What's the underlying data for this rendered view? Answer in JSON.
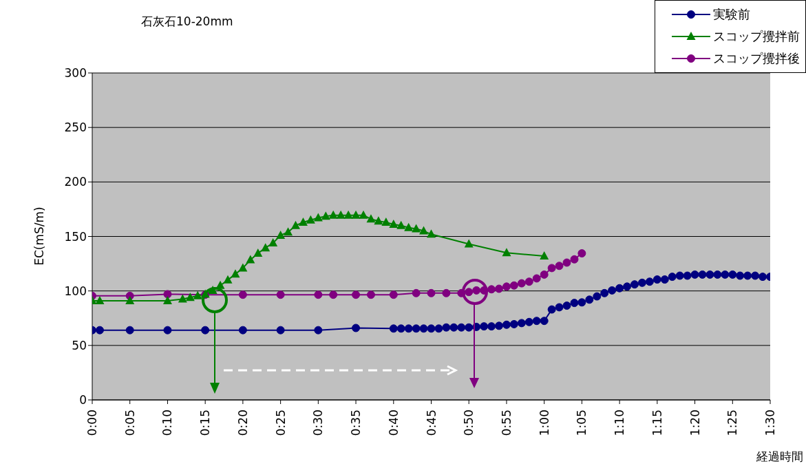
{
  "chart_data": {
    "type": "line",
    "title": "石灰石10-20mm",
    "xlabel": "経過時間",
    "ylabel": "EC(mS/m)",
    "xlim": [
      0,
      1.5
    ],
    "xticks": [
      {
        "value": 0,
        "label": "0:00"
      },
      {
        "value": 0.0833,
        "label": "0:05"
      },
      {
        "value": 0.1667,
        "label": "0:10"
      },
      {
        "value": 0.25,
        "label": "0:15"
      },
      {
        "value": 0.3333,
        "label": "0:20"
      },
      {
        "value": 0.4167,
        "label": "0:25"
      },
      {
        "value": 0.5,
        "label": "0:30"
      },
      {
        "value": 0.5833,
        "label": "0:35"
      },
      {
        "value": 0.6667,
        "label": "0:40"
      },
      {
        "value": 0.75,
        "label": "0:45"
      },
      {
        "value": 0.8333,
        "label": "0:50"
      },
      {
        "value": 0.9167,
        "label": "0:55"
      },
      {
        "value": 1,
        "label": "1:00"
      },
      {
        "value": 1.0833,
        "label": "1:05"
      },
      {
        "value": 1.1667,
        "label": "1:10"
      },
      {
        "value": 1.25,
        "label": "1:15"
      },
      {
        "value": 1.3333,
        "label": "1:20"
      },
      {
        "value": 1.4167,
        "label": "1:25"
      },
      {
        "value": 1.5,
        "label": "1:30"
      }
    ],
    "ylim": [
      0,
      300
    ],
    "yticks": [
      0,
      50,
      100,
      150,
      200,
      250,
      300
    ],
    "grid": "y",
    "legend": "top right",
    "series": [
      {
        "name": "実験前",
        "color": "#000080",
        "marker": "circle",
        "x": [
          0,
          0.0167,
          0.0833,
          0.1667,
          0.25,
          0.3333,
          0.4167,
          0.5,
          0.5833,
          0.6667,
          0.6833,
          0.7,
          0.7167,
          0.7333,
          0.75,
          0.7667,
          0.7833,
          0.8,
          0.8167,
          0.8333,
          0.85,
          0.8667,
          0.8833,
          0.9,
          0.9167,
          0.9333,
          0.95,
          0.9667,
          0.9833,
          1,
          1.0167,
          1.0333,
          1.05,
          1.0667,
          1.0833,
          1.1,
          1.1167,
          1.1333,
          1.15,
          1.1667,
          1.1833,
          1.2,
          1.2167,
          1.2333,
          1.25,
          1.2667,
          1.2833,
          1.3,
          1.3167,
          1.3333,
          1.35,
          1.3667,
          1.3833,
          1.4,
          1.4167,
          1.4333,
          1.45,
          1.4667,
          1.4833,
          1.5
        ],
        "values": [
          64,
          64,
          64,
          64,
          64,
          64,
          64,
          64,
          66,
          65.5,
          65.5,
          65.5,
          65.5,
          65.5,
          65.5,
          65.5,
          66.5,
          66.5,
          66.5,
          66.5,
          67,
          67.5,
          67.5,
          68,
          69,
          69.5,
          70.5,
          71.5,
          72.5,
          72.5,
          83,
          85,
          86.5,
          89,
          89.5,
          92,
          95,
          98,
          100.5,
          102.5,
          104,
          106,
          107.5,
          108.5,
          110.5,
          110.5,
          113,
          114,
          114,
          115,
          115,
          115,
          115,
          115,
          115,
          114,
          114,
          114,
          113,
          113
        ]
      },
      {
        "name": "スコップ攪拌前",
        "color": "#008000",
        "marker": "triangle",
        "x": [
          0,
          0.0167,
          0.0833,
          0.1667,
          0.2,
          0.2167,
          0.2333,
          0.25,
          0.2667,
          0.2833,
          0.3,
          0.3167,
          0.3333,
          0.35,
          0.3667,
          0.3833,
          0.4,
          0.4167,
          0.4333,
          0.45,
          0.4667,
          0.4833,
          0.5,
          0.5167,
          0.5333,
          0.55,
          0.5667,
          0.5833,
          0.6,
          0.6167,
          0.6333,
          0.65,
          0.6667,
          0.6833,
          0.7,
          0.7167,
          0.7333,
          0.75,
          0.8333,
          0.9167,
          1
        ],
        "values": [
          91,
          91,
          91,
          91,
          92.5,
          94,
          95.5,
          97,
          100.5,
          105,
          110,
          115.5,
          121,
          128.5,
          134.5,
          139.5,
          144,
          151,
          154,
          160,
          163,
          165,
          167,
          168.5,
          169.5,
          169.5,
          169.5,
          169.5,
          169.5,
          166,
          164,
          163,
          161,
          160,
          158,
          157,
          155,
          152,
          143,
          135,
          132
        ]
      },
      {
        "name": "スコップ攪拌後",
        "color": "#800080",
        "marker": "circle",
        "x": [
          0,
          0.0833,
          0.1667,
          0.25,
          0.3333,
          0.4167,
          0.5,
          0.5333,
          0.5833,
          0.6167,
          0.6667,
          0.7167,
          0.75,
          0.7833,
          0.8167,
          0.8333,
          0.85,
          0.8667,
          0.8833,
          0.9,
          0.9167,
          0.9333,
          0.95,
          0.9667,
          0.9833,
          1,
          1.0167,
          1.0333,
          1.05,
          1.0667,
          1.0833
        ],
        "values": [
          95.5,
          95.5,
          97,
          96.5,
          96.5,
          96.5,
          96.5,
          96.5,
          96.5,
          96.5,
          96.5,
          98,
          98,
          98,
          98,
          99,
          100.5,
          100.5,
          101.5,
          102,
          104,
          105,
          107,
          108.5,
          111.5,
          115,
          121,
          123,
          126,
          129,
          134.5
        ]
      }
    ]
  }
}
